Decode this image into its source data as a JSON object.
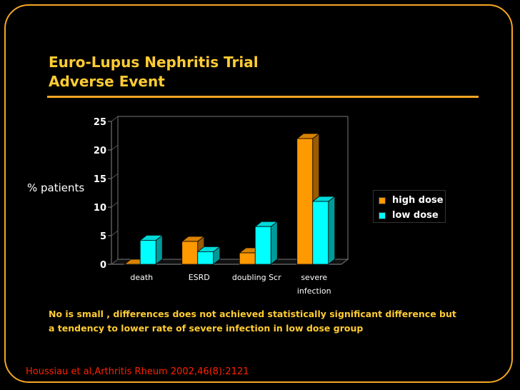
{
  "slide": {
    "title_lines": [
      "Euro-Lupus Nephritis Trial",
      "Adverse Event"
    ],
    "note": "No is small , differences does not achieved statistically significant difference but a tendency to lower rate of severe infection in low dose group",
    "citation": "Houssiau et al,Arthritis Rheum 2002,46(8):2121",
    "frame_color": "#f5a623",
    "title_color": "#ffcc33",
    "citation_color": "#ff2200"
  },
  "chart_data": {
    "type": "bar",
    "title": "",
    "xlabel": "",
    "ylabel": "% patients",
    "categories": [
      "death",
      "ESRD",
      "doubling Scr",
      "severe infection"
    ],
    "category_lines": [
      [
        "death"
      ],
      [
        "ESRD"
      ],
      [
        "doubling Scr"
      ],
      [
        "severe",
        "infection"
      ]
    ],
    "series": [
      {
        "name": "high dose",
        "values": [
          0,
          4,
          2,
          22
        ],
        "color": "#ff9900"
      },
      {
        "name": "low dose",
        "values": [
          4.2,
          2.2,
          6.6,
          11
        ],
        "color": "#00ffff"
      }
    ],
    "ylim": [
      0,
      25
    ],
    "yticks": [
      0,
      5,
      10,
      15,
      20,
      25
    ],
    "grid": false,
    "three_d": true,
    "legend_position": "right"
  }
}
